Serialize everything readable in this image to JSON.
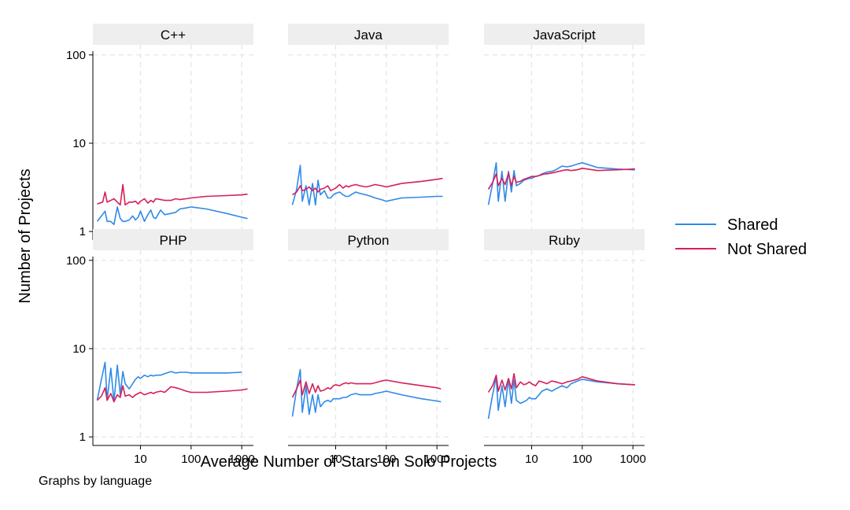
{
  "chart_data": {
    "type": "line",
    "layout": "facet-grid",
    "xlabel": "Average Number of Stars on Solo Projects",
    "ylabel": "Number of Projects",
    "note": "Graphs by language",
    "xscale": "log",
    "yscale": "log",
    "xlim": [
      1.15,
      1700
    ],
    "ylim": [
      0.8,
      130
    ],
    "xticks": [
      10,
      100,
      1000
    ],
    "yticks": [
      1,
      10,
      100
    ],
    "grid": true,
    "legend_position": "right",
    "colors": {
      "Shared": "#2f8ae8",
      "Not Shared": "#d61f5a",
      "strip": "#eeeeee",
      "grid": "#e6e6e6"
    },
    "series_names": [
      "Shared",
      "Not Shared"
    ],
    "panels": [
      {
        "title": "C++",
        "series": [
          {
            "name": "Shared",
            "x": [
              1.4,
              1.7,
              2,
              2.2,
              2.6,
              3,
              3.5,
              4,
              4.5,
              5,
              6,
              7,
              8,
              9,
              10,
              12,
              14,
              16,
              18,
              20,
              25,
              30,
              40,
              50,
              60,
              80,
              100,
              200,
              500,
              1000,
              1300
            ],
            "y": [
              1.3,
              1.5,
              1.7,
              1.3,
              1.3,
              1.2,
              1.9,
              1.4,
              1.3,
              1.3,
              1.35,
              1.5,
              1.35,
              1.45,
              1.7,
              1.3,
              1.55,
              1.75,
              1.45,
              1.4,
              1.75,
              1.55,
              1.6,
              1.65,
              1.8,
              1.85,
              1.9,
              1.8,
              1.6,
              1.45,
              1.4
            ]
          },
          {
            "name": "Not Shared",
            "x": [
              1.4,
              1.8,
              2,
              2.2,
              2.6,
              3,
              3.5,
              4,
              4.5,
              5,
              6,
              7,
              8,
              9,
              10,
              12,
              14,
              16,
              18,
              20,
              25,
              30,
              40,
              50,
              60,
              80,
              100,
              200,
              500,
              1000,
              1300
            ],
            "y": [
              2.05,
              2.15,
              2.8,
              2.15,
              2.25,
              2.35,
              2.15,
              2.0,
              3.4,
              2.0,
              2.15,
              2.15,
              2.2,
              2.05,
              2.2,
              2.35,
              2.1,
              2.25,
              2.15,
              2.35,
              2.3,
              2.25,
              2.25,
              2.35,
              2.3,
              2.35,
              2.4,
              2.5,
              2.55,
              2.6,
              2.65
            ]
          }
        ]
      },
      {
        "title": "Java",
        "series": [
          {
            "name": "Shared",
            "x": [
              1.4,
              1.7,
              2,
              2.2,
              2.6,
              3,
              3.5,
              4,
              4.5,
              5,
              6,
              7,
              8,
              9,
              10,
              12,
              14,
              16,
              18,
              20,
              25,
              30,
              40,
              50,
              60,
              80,
              100,
              200,
              500,
              1000,
              1300
            ],
            "y": [
              2.0,
              3.0,
              5.6,
              2.2,
              3.3,
              2.0,
              3.5,
              2.0,
              3.8,
              2.6,
              2.9,
              2.4,
              2.4,
              2.6,
              2.7,
              2.8,
              2.6,
              2.5,
              2.5,
              2.6,
              2.8,
              2.7,
              2.6,
              2.5,
              2.4,
              2.3,
              2.2,
              2.4,
              2.45,
              2.5,
              2.5
            ]
          },
          {
            "name": "Not Shared",
            "x": [
              1.4,
              1.7,
              2,
              2.2,
              2.6,
              3,
              3.5,
              4,
              4.5,
              5,
              6,
              7,
              8,
              9,
              10,
              12,
              14,
              16,
              18,
              20,
              25,
              30,
              40,
              50,
              60,
              80,
              100,
              200,
              500,
              1000,
              1300
            ],
            "y": [
              2.6,
              2.8,
              3.3,
              2.9,
              3.0,
              3.2,
              2.9,
              3.1,
              2.8,
              3.0,
              3.1,
              3.3,
              2.9,
              3.0,
              3.1,
              3.4,
              3.1,
              3.3,
              3.2,
              3.3,
              3.4,
              3.3,
              3.2,
              3.3,
              3.4,
              3.3,
              3.2,
              3.5,
              3.7,
              3.9,
              4.0
            ]
          }
        ]
      },
      {
        "title": "JavaScript",
        "series": [
          {
            "name": "Shared",
            "x": [
              1.4,
              1.7,
              2,
              2.2,
              2.6,
              3,
              3.5,
              4,
              4.5,
              5,
              6,
              7,
              8,
              9,
              10,
              12,
              14,
              16,
              18,
              20,
              25,
              30,
              40,
              50,
              60,
              80,
              100,
              200,
              500,
              1000,
              1100
            ],
            "y": [
              2.0,
              3.5,
              6.0,
              2.2,
              4.8,
              2.2,
              4.8,
              2.8,
              4.9,
              3.3,
              3.5,
              3.8,
              3.9,
              4.0,
              4.0,
              4.2,
              4.3,
              4.5,
              4.6,
              4.7,
              4.8,
              5.0,
              5.5,
              5.4,
              5.5,
              5.8,
              6.0,
              5.3,
              5.1,
              5.0,
              5.0
            ]
          },
          {
            "name": "Not Shared",
            "x": [
              1.4,
              1.7,
              2,
              2.2,
              2.6,
              3,
              3.5,
              4,
              4.5,
              5,
              6,
              7,
              8,
              9,
              10,
              12,
              14,
              16,
              18,
              20,
              25,
              30,
              40,
              50,
              60,
              80,
              100,
              200,
              500,
              1000,
              1100
            ],
            "y": [
              3.0,
              3.6,
              4.5,
              3.3,
              4.0,
              3.4,
              4.6,
              3.3,
              4.2,
              3.6,
              3.7,
              3.9,
              4.0,
              4.1,
              4.2,
              4.2,
              4.3,
              4.4,
              4.5,
              4.5,
              4.6,
              4.7,
              4.9,
              5.0,
              4.9,
              5.0,
              5.2,
              4.9,
              5.0,
              5.1,
              5.1
            ]
          }
        ]
      },
      {
        "title": "PHP",
        "series": [
          {
            "name": "Shared",
            "x": [
              1.4,
              1.7,
              2,
              2.2,
              2.6,
              3,
              3.5,
              4,
              4.5,
              5,
              6,
              7,
              8,
              9,
              10,
              12,
              14,
              16,
              18,
              20,
              25,
              30,
              40,
              50,
              60,
              80,
              100,
              200,
              500,
              1000
            ],
            "y": [
              2.6,
              4.5,
              7.0,
              2.6,
              6.0,
              2.5,
              6.5,
              3.0,
              5.5,
              4.0,
              3.5,
              4.0,
              4.5,
              4.8,
              4.6,
              5.0,
              4.8,
              5.0,
              4.9,
              5.0,
              5.0,
              5.2,
              5.5,
              5.3,
              5.4,
              5.4,
              5.3,
              5.3,
              5.3,
              5.4
            ]
          },
          {
            "name": "Not Shared",
            "x": [
              1.4,
              1.7,
              2,
              2.2,
              2.6,
              3,
              3.5,
              4,
              4.5,
              5,
              6,
              7,
              8,
              9,
              10,
              12,
              14,
              16,
              18,
              20,
              25,
              30,
              40,
              50,
              60,
              80,
              100,
              200,
              500,
              1000,
              1300
            ],
            "y": [
              2.6,
              2.9,
              3.6,
              2.6,
              3.1,
              2.5,
              3.0,
              2.8,
              3.8,
              2.9,
              3.0,
              2.8,
              3.0,
              3.1,
              3.2,
              3.0,
              3.1,
              3.2,
              3.1,
              3.2,
              3.3,
              3.2,
              3.7,
              3.6,
              3.5,
              3.3,
              3.2,
              3.2,
              3.3,
              3.4,
              3.5
            ]
          }
        ]
      },
      {
        "title": "Python",
        "series": [
          {
            "name": "Shared",
            "x": [
              1.4,
              1.7,
              2,
              2.2,
              2.6,
              3,
              3.5,
              4,
              4.5,
              5,
              6,
              7,
              8,
              9,
              10,
              12,
              14,
              16,
              18,
              20,
              25,
              30,
              40,
              50,
              60,
              80,
              100,
              200,
              500,
              1000,
              1200
            ],
            "y": [
              1.7,
              3.5,
              5.8,
              1.9,
              3.8,
              1.8,
              3.0,
              1.9,
              3.0,
              2.2,
              2.5,
              2.6,
              2.5,
              2.7,
              2.7,
              2.7,
              2.8,
              2.8,
              2.9,
              3.0,
              3.1,
              3.0,
              3.0,
              3.0,
              3.1,
              3.2,
              3.3,
              3.0,
              2.7,
              2.55,
              2.5
            ]
          },
          {
            "name": "Not Shared",
            "x": [
              1.4,
              1.7,
              2,
              2.2,
              2.6,
              3,
              3.5,
              4,
              4.5,
              5,
              6,
              7,
              8,
              9,
              10,
              12,
              14,
              16,
              18,
              20,
              25,
              30,
              40,
              50,
              60,
              80,
              100,
              200,
              500,
              1000,
              1200
            ],
            "y": [
              2.8,
              3.5,
              4.4,
              3.0,
              4.2,
              3.1,
              4.0,
              3.2,
              3.8,
              3.3,
              3.4,
              3.6,
              3.5,
              3.8,
              3.9,
              3.8,
              4.0,
              4.1,
              4.0,
              4.1,
              4.0,
              4.0,
              4.0,
              4.0,
              4.1,
              4.3,
              4.4,
              4.1,
              3.8,
              3.6,
              3.5
            ]
          }
        ]
      },
      {
        "title": "Ruby",
        "series": [
          {
            "name": "Shared",
            "x": [
              1.4,
              1.7,
              2,
              2.2,
              2.6,
              3,
              3.5,
              4,
              4.5,
              5,
              6,
              7,
              8,
              9,
              10,
              12,
              14,
              16,
              18,
              20,
              25,
              30,
              40,
              50,
              60,
              80,
              100,
              200,
              500,
              1000,
              1100
            ],
            "y": [
              1.6,
              3.0,
              4.8,
              2.0,
              3.8,
              2.2,
              4.5,
              2.4,
              4.4,
              2.6,
              2.4,
              2.5,
              2.6,
              2.8,
              2.7,
              2.7,
              3.0,
              3.3,
              3.4,
              3.5,
              3.3,
              3.5,
              3.8,
              3.6,
              4.0,
              4.3,
              4.5,
              4.2,
              4.0,
              3.9,
              3.9
            ]
          },
          {
            "name": "Not Shared",
            "x": [
              1.4,
              1.7,
              2,
              2.2,
              2.6,
              3,
              3.5,
              4,
              4.5,
              5,
              6,
              7,
              8,
              9,
              10,
              12,
              14,
              16,
              18,
              20,
              25,
              30,
              40,
              50,
              60,
              80,
              100,
              200,
              500,
              1000,
              1100
            ],
            "y": [
              3.2,
              3.8,
              5.0,
              3.3,
              4.4,
              3.4,
              4.6,
              3.5,
              5.2,
              3.6,
              4.2,
              3.9,
              4.0,
              4.2,
              4.0,
              3.8,
              4.3,
              4.2,
              4.1,
              4.0,
              4.3,
              4.2,
              4.0,
              4.2,
              4.3,
              4.5,
              4.8,
              4.3,
              4.0,
              3.9,
              3.9
            ]
          }
        ]
      }
    ]
  }
}
